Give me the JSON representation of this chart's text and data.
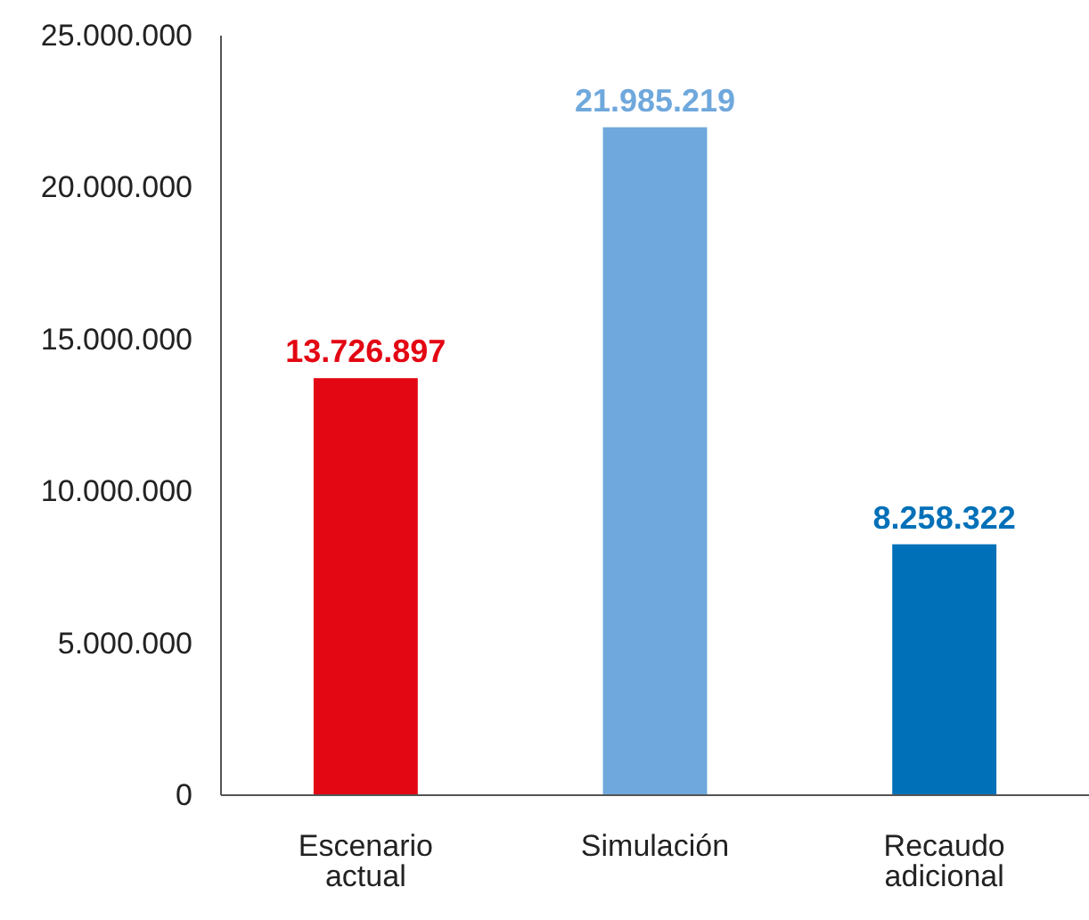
{
  "chart_data": {
    "type": "bar",
    "categories": [
      "Escenario actual",
      "Simulación",
      "Recaudo adicional"
    ],
    "values": [
      13726897,
      21985219,
      8258322
    ],
    "colors": [
      "#e30613",
      "#6fa8dc",
      "#0070b8"
    ],
    "value_labels": [
      "13.726.897",
      "21.985.219",
      "8.258.322"
    ],
    "ylim": [
      0,
      25000000
    ],
    "yticks": [
      0,
      {
        "value": 5000000,
        "label": "5.000.000"
      },
      {
        "value": 10000000,
        "label": "10.000.000"
      },
      {
        "value": 15000000,
        "label": "15.000.000"
      },
      {
        "value": 20000000,
        "label": "20.000.000"
      },
      {
        "value": 25000000,
        "label": "25.000.000"
      }
    ],
    "grid": false
  }
}
